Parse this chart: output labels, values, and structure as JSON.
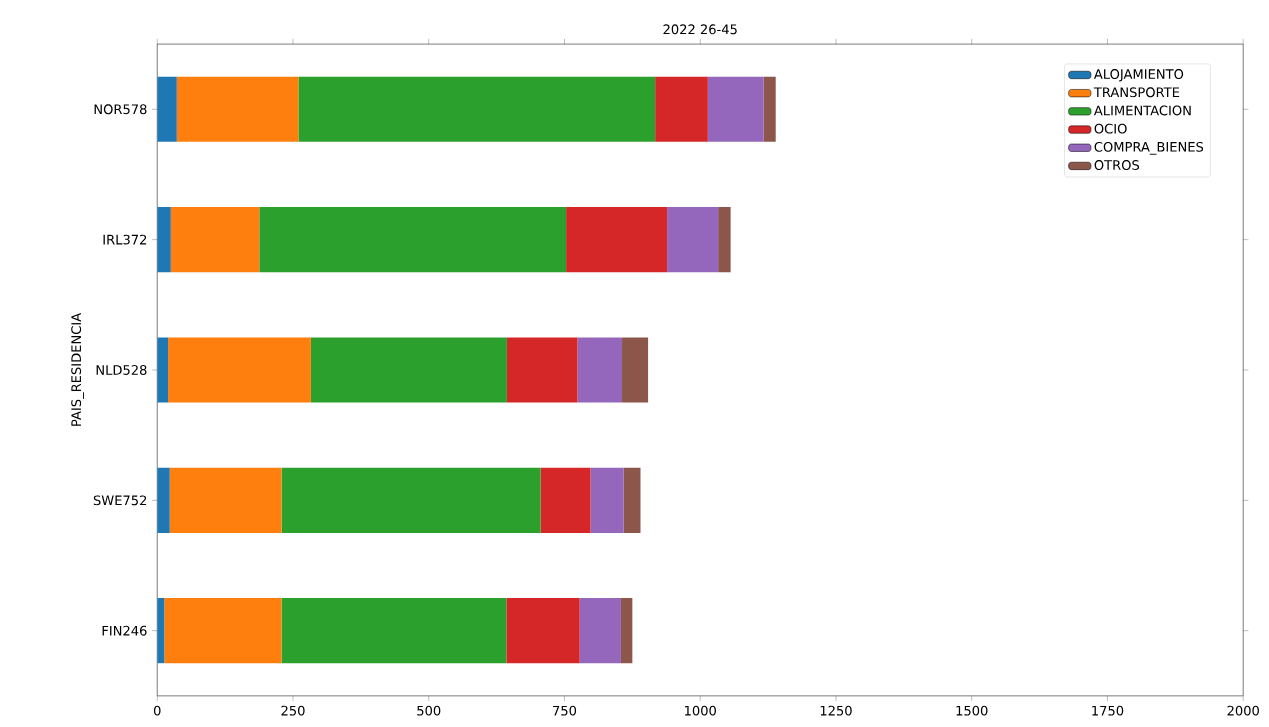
{
  "chart_data": {
    "type": "bar",
    "orientation": "horizontal",
    "stacked": true,
    "title": "2022 26-45",
    "ylabel": "PAIS_RESIDENCIA",
    "categories": [
      "NOR578",
      "IRL372",
      "NLD528",
      "SWE752",
      "FIN246"
    ],
    "series": [
      {
        "name": "ALOJAMIENTO",
        "color": "#1f77b4",
        "values": [
          36,
          25,
          20,
          23,
          13
        ]
      },
      {
        "name": "TRANSPORTE",
        "color": "#ff7f0e",
        "values": [
          224,
          163,
          263,
          206,
          216
        ]
      },
      {
        "name": "ALIMENTACION",
        "color": "#2ca02c",
        "values": [
          657,
          565,
          361,
          477,
          414
        ]
      },
      {
        "name": "OCIO",
        "color": "#d62728",
        "values": [
          97,
          186,
          130,
          92,
          135
        ]
      },
      {
        "name": "COMPRA_BIENES",
        "color": "#9467bd",
        "values": [
          103,
          94,
          82,
          61,
          76
        ]
      },
      {
        "name": "OTROS",
        "color": "#8c564b",
        "values": [
          22,
          23,
          48,
          31,
          21
        ]
      }
    ],
    "xlim": [
      0,
      2000
    ],
    "xticks": [
      0,
      250,
      500,
      750,
      1000,
      1250,
      1500,
      1750,
      2000
    ],
    "legend": "top right"
  }
}
